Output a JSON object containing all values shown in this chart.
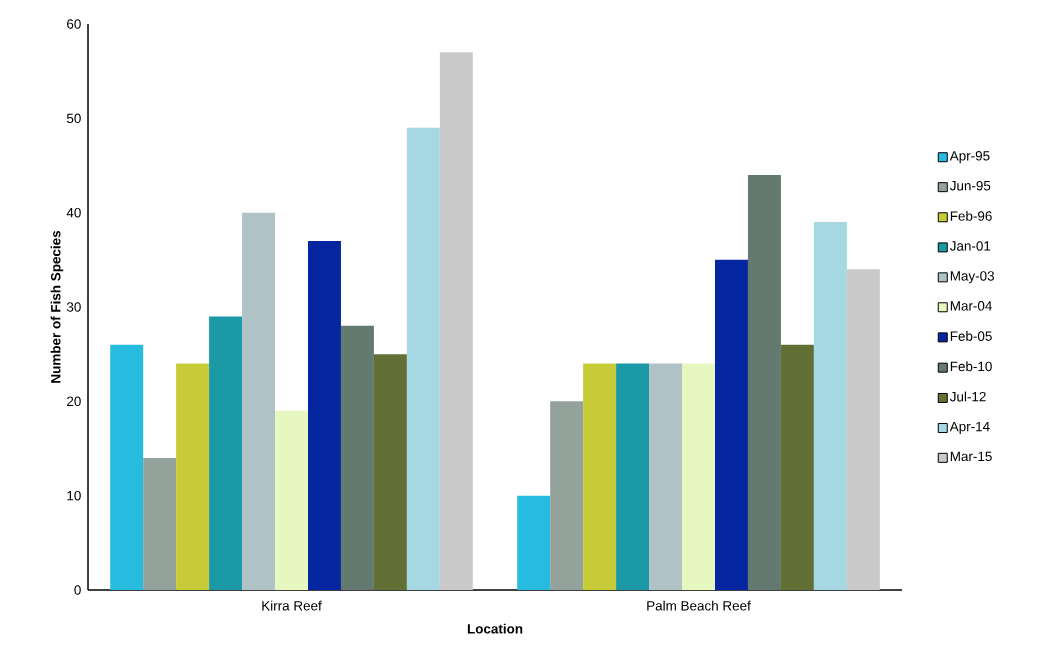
{
  "chart_data": {
    "type": "bar",
    "xlabel": "Location",
    "ylabel": "Number of Fish Species",
    "categories": [
      "Kirra Reef",
      "Palm Beach Reef"
    ],
    "series": [
      {
        "name": "Apr-95",
        "color": "#27bbe0",
        "values": [
          26,
          10
        ]
      },
      {
        "name": "Jun-95",
        "color": "#93a39c",
        "values": [
          14,
          20
        ]
      },
      {
        "name": "Feb-96",
        "color": "#c6cb37",
        "values": [
          24,
          24
        ]
      },
      {
        "name": "Jan-01",
        "color": "#1c99a7",
        "values": [
          29,
          24
        ]
      },
      {
        "name": "May-03",
        "color": "#afc2c6",
        "values": [
          40,
          24
        ]
      },
      {
        "name": "Mar-04",
        "color": "#e6f8c0",
        "values": [
          19,
          24
        ]
      },
      {
        "name": "Feb-05",
        "color": "#0625a0",
        "values": [
          37,
          35
        ]
      },
      {
        "name": "Feb-10",
        "color": "#647a70",
        "values": [
          28,
          44
        ]
      },
      {
        "name": "Jul-12",
        "color": "#627036",
        "values": [
          25,
          26
        ]
      },
      {
        "name": "Apr-14",
        "color": "#a5d8e3",
        "values": [
          49,
          39
        ]
      },
      {
        "name": "Mar-15",
        "color": "#c9c9c9",
        "values": [
          57,
          34
        ]
      }
    ],
    "ylim": [
      0,
      60
    ],
    "yticks": [
      0,
      10,
      20,
      30,
      40,
      50,
      60
    ],
    "legend": "right",
    "grid": false
  }
}
